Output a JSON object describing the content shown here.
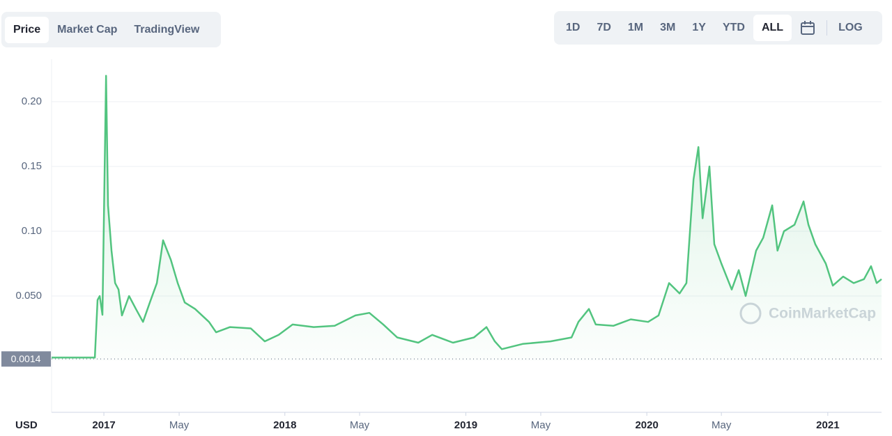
{
  "tabs": [
    "Price",
    "Market Cap",
    "TradingView"
  ],
  "active_tab": 0,
  "ranges": [
    "1D",
    "7D",
    "1M",
    "3M",
    "1Y",
    "YTD",
    "ALL"
  ],
  "active_range": 6,
  "log_button": "LOG",
  "chart_data": {
    "type": "line",
    "y_unit_label": "USD",
    "watermark": "CoinMarketCap",
    "baseline": 0.0014,
    "baseline_label": "0.0014",
    "xlim": [
      2016.711,
      2021.297
    ],
    "ylim": [
      0,
      0.2328
    ],
    "xticks": [
      2017,
      {
        "value": 2017.416,
        "label": "May"
      },
      2018,
      {
        "value": 2018.413,
        "label": "May"
      },
      2019,
      {
        "value": 2019.414,
        "label": "May"
      },
      2020,
      {
        "value": 2020.412,
        "label": "May"
      },
      2021
    ],
    "yticks": [
      {
        "value": 0.05,
        "label": "0.050"
      },
      {
        "value": 0.1,
        "label": "0.10"
      },
      0.15,
      {
        "value": 0.2,
        "label": "0.20"
      }
    ],
    "grid": true,
    "series": [
      {
        "name": "Price",
        "color": "#52c47f",
        "x": [
          2016.711,
          2016.95,
          2016.965,
          2016.977,
          2016.992,
          2017.012,
          2017.023,
          2017.042,
          2017.062,
          2017.081,
          2017.1,
          2017.139,
          2017.177,
          2017.216,
          2017.254,
          2017.293,
          2017.327,
          2017.37,
          2017.408,
          2017.447,
          2017.504,
          2017.581,
          2017.62,
          2017.697,
          2017.812,
          2017.889,
          2017.966,
          2018.043,
          2018.159,
          2018.275,
          2018.39,
          2018.467,
          2018.544,
          2018.621,
          2018.737,
          2018.814,
          2018.929,
          2019.045,
          2019.114,
          2019.16,
          2019.199,
          2019.314,
          2019.468,
          2019.584,
          2019.622,
          2019.68,
          2019.718,
          2019.815,
          2019.911,
          2020.007,
          2020.065,
          2020.123,
          2020.181,
          2020.219,
          2020.258,
          2020.285,
          2020.308,
          2020.346,
          2020.373,
          2020.412,
          2020.469,
          2020.508,
          2020.546,
          2020.604,
          2020.643,
          2020.693,
          2020.722,
          2020.758,
          2020.816,
          2020.866,
          2020.893,
          2020.931,
          2020.989,
          2021.028,
          2021.085,
          2021.143,
          2021.2,
          2021.239,
          2021.27,
          2021.297
        ],
        "values": [
          0.0025,
          0.0025,
          0.047,
          0.05,
          0.0355,
          0.22,
          0.12,
          0.085,
          0.06,
          0.055,
          0.035,
          0.05,
          0.04,
          0.03,
          0.045,
          0.06,
          0.093,
          0.078,
          0.06,
          0.045,
          0.04,
          0.03,
          0.022,
          0.026,
          0.025,
          0.015,
          0.02,
          0.028,
          0.026,
          0.027,
          0.035,
          0.037,
          0.028,
          0.018,
          0.014,
          0.02,
          0.014,
          0.018,
          0.026,
          0.015,
          0.009,
          0.013,
          0.015,
          0.018,
          0.03,
          0.04,
          0.028,
          0.027,
          0.032,
          0.03,
          0.035,
          0.06,
          0.052,
          0.06,
          0.14,
          0.165,
          0.11,
          0.15,
          0.09,
          0.075,
          0.055,
          0.07,
          0.05,
          0.085,
          0.095,
          0.12,
          0.085,
          0.1,
          0.105,
          0.123,
          0.105,
          0.09,
          0.075,
          0.058,
          0.065,
          0.06,
          0.063,
          0.073,
          0.06,
          0.063
        ]
      }
    ]
  }
}
